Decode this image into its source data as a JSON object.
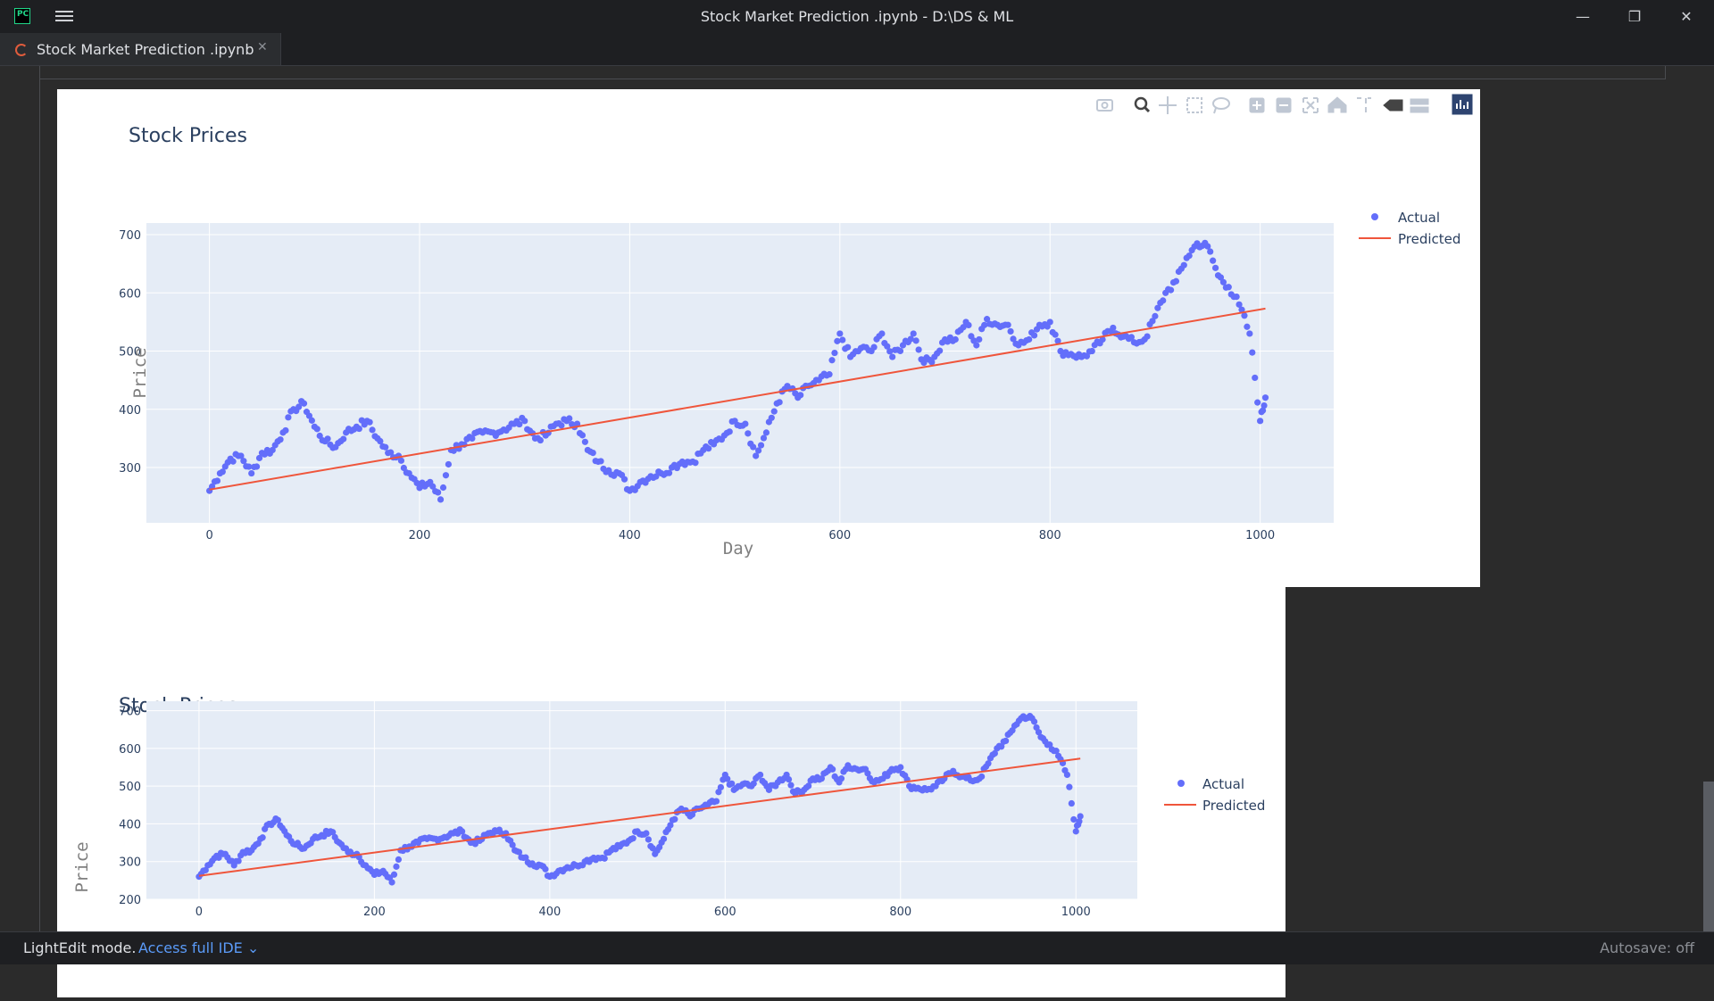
{
  "window": {
    "title": "Stock Market Prediction .ipynb - D:\\DS & ML",
    "app_icon": "pycharm-logo",
    "app_icon_text": "PC",
    "controls": [
      "minimize-icon",
      "restore-icon",
      "close-icon"
    ]
  },
  "tabs": [
    {
      "label": "Stock Market Prediction .ipynb",
      "icon": "loading-spinner-icon",
      "close_icon": "close-icon"
    }
  ],
  "status": {
    "mode": "LightEdit mode.",
    "link": "Access full IDE",
    "autosave": "Autosave: off"
  },
  "plot_toolbar": {
    "icons": [
      "camera-icon",
      "zoom-icon",
      "pan-icon",
      "box-select-icon",
      "lasso-select-icon",
      "zoom-in-icon",
      "zoom-out-icon",
      "autoscale-icon",
      "reset-axes-icon",
      "spike-lines-icon",
      "hover-closest-icon",
      "hover-compare-icon",
      "plotly-logo-icon"
    ]
  },
  "colors": {
    "actual": "#636efa",
    "predicted": "#ef553b",
    "plot_bg": "#e5ecf6"
  },
  "chart_data": [
    {
      "type": "scatter",
      "title": "Stock Prices",
      "xlabel": "Day",
      "ylabel": "Price",
      "xlim": [
        -60,
        1070
      ],
      "ylim": [
        205,
        720
      ],
      "x_ticks": [
        "0",
        "200",
        "400",
        "600",
        "800",
        "1000"
      ],
      "y_ticks": [
        "300",
        "400",
        "500",
        "600",
        "700"
      ],
      "legend": [
        "Actual",
        "Predicted"
      ],
      "legend_position": "top-right",
      "grid": true,
      "series": [
        {
          "name": "Actual",
          "mode": "markers",
          "x": [
            0,
            10,
            20,
            30,
            40,
            50,
            60,
            70,
            80,
            90,
            100,
            110,
            120,
            130,
            140,
            150,
            160,
            170,
            180,
            190,
            200,
            210,
            220,
            230,
            240,
            250,
            260,
            270,
            280,
            290,
            300,
            310,
            320,
            330,
            340,
            350,
            360,
            370,
            380,
            390,
            400,
            410,
            420,
            430,
            440,
            450,
            460,
            470,
            480,
            490,
            500,
            510,
            520,
            530,
            540,
            550,
            560,
            570,
            580,
            590,
            600,
            610,
            620,
            630,
            640,
            650,
            660,
            670,
            680,
            690,
            700,
            710,
            720,
            730,
            740,
            750,
            760,
            770,
            780,
            790,
            800,
            810,
            820,
            830,
            840,
            850,
            860,
            870,
            880,
            890,
            900,
            910,
            920,
            930,
            940,
            950,
            960,
            970,
            980,
            990,
            1000,
            1005
          ],
          "y": [
            260,
            290,
            315,
            320,
            290,
            325,
            330,
            360,
            400,
            410,
            370,
            345,
            335,
            360,
            370,
            380,
            350,
            325,
            320,
            290,
            265,
            275,
            245,
            330,
            340,
            350,
            360,
            360,
            365,
            375,
            380,
            350,
            355,
            375,
            380,
            375,
            330,
            310,
            295,
            290,
            260,
            275,
            285,
            290,
            300,
            310,
            310,
            330,
            340,
            355,
            380,
            375,
            320,
            360,
            410,
            440,
            420,
            440,
            450,
            460,
            530,
            490,
            505,
            500,
            530,
            490,
            510,
            530,
            480,
            490,
            520,
            520,
            550,
            510,
            555,
            545,
            545,
            510,
            520,
            545,
            550,
            500,
            495,
            490,
            500,
            520,
            540,
            525,
            515,
            520,
            560,
            600,
            620,
            660,
            685,
            680,
            630,
            610,
            580,
            530,
            380,
            420
          ],
          "note": "approximate sampled values; daily series shown as dots"
        },
        {
          "name": "Predicted",
          "mode": "line",
          "x": [
            0,
            1005
          ],
          "y": [
            262,
            573
          ]
        }
      ]
    },
    {
      "type": "scatter",
      "title": "Stock Prices",
      "xlabel": "",
      "ylabel": "Price",
      "xlim": [
        -60,
        1070
      ],
      "ylim": [
        200,
        725
      ],
      "x_ticks": [
        "0",
        "200",
        "400",
        "600",
        "800",
        "1000"
      ],
      "y_ticks": [
        "200",
        "300",
        "400",
        "500",
        "600",
        "700"
      ],
      "legend": [
        "Actual",
        "Predicted"
      ],
      "legend_position": "top-right",
      "grid": true,
      "series": [
        {
          "name": "Actual",
          "mode": "markers",
          "x": [
            0,
            10,
            20,
            30,
            40,
            50,
            60,
            70,
            80,
            90,
            100,
            110,
            120,
            130,
            140,
            150,
            160,
            170,
            180,
            190,
            200,
            210,
            220,
            230,
            240,
            250,
            260,
            270,
            280,
            290,
            300,
            310,
            320,
            330,
            340,
            350,
            360,
            370,
            380,
            390,
            400,
            410,
            420,
            430,
            440,
            450,
            460,
            470,
            480,
            490,
            500,
            510,
            520,
            530,
            540,
            550,
            560,
            570,
            580,
            590,
            600,
            610,
            620,
            630,
            640,
            650,
            660,
            670,
            680,
            690,
            700,
            710,
            720,
            730,
            740,
            750,
            760,
            770,
            780,
            790,
            800,
            810,
            820,
            830,
            840,
            850,
            860,
            870,
            880,
            890,
            900,
            910,
            920,
            930,
            940,
            950,
            960,
            970,
            980,
            990,
            1000,
            1005
          ],
          "y": [
            260,
            290,
            315,
            320,
            290,
            325,
            330,
            360,
            400,
            410,
            370,
            345,
            335,
            360,
            370,
            380,
            350,
            325,
            320,
            290,
            265,
            275,
            245,
            330,
            340,
            350,
            360,
            360,
            365,
            375,
            380,
            350,
            355,
            375,
            380,
            375,
            330,
            310,
            295,
            290,
            260,
            275,
            285,
            290,
            300,
            310,
            310,
            330,
            340,
            355,
            380,
            375,
            320,
            360,
            410,
            440,
            420,
            440,
            450,
            460,
            530,
            490,
            505,
            500,
            530,
            490,
            510,
            530,
            480,
            490,
            520,
            520,
            550,
            510,
            555,
            545,
            545,
            510,
            520,
            545,
            550,
            500,
            495,
            490,
            500,
            520,
            540,
            525,
            515,
            520,
            560,
            600,
            620,
            660,
            685,
            680,
            630,
            610,
            580,
            530,
            380,
            420
          ]
        },
        {
          "name": "Predicted",
          "mode": "line",
          "x": [
            0,
            1005
          ],
          "y": [
            262,
            573
          ]
        }
      ]
    }
  ]
}
